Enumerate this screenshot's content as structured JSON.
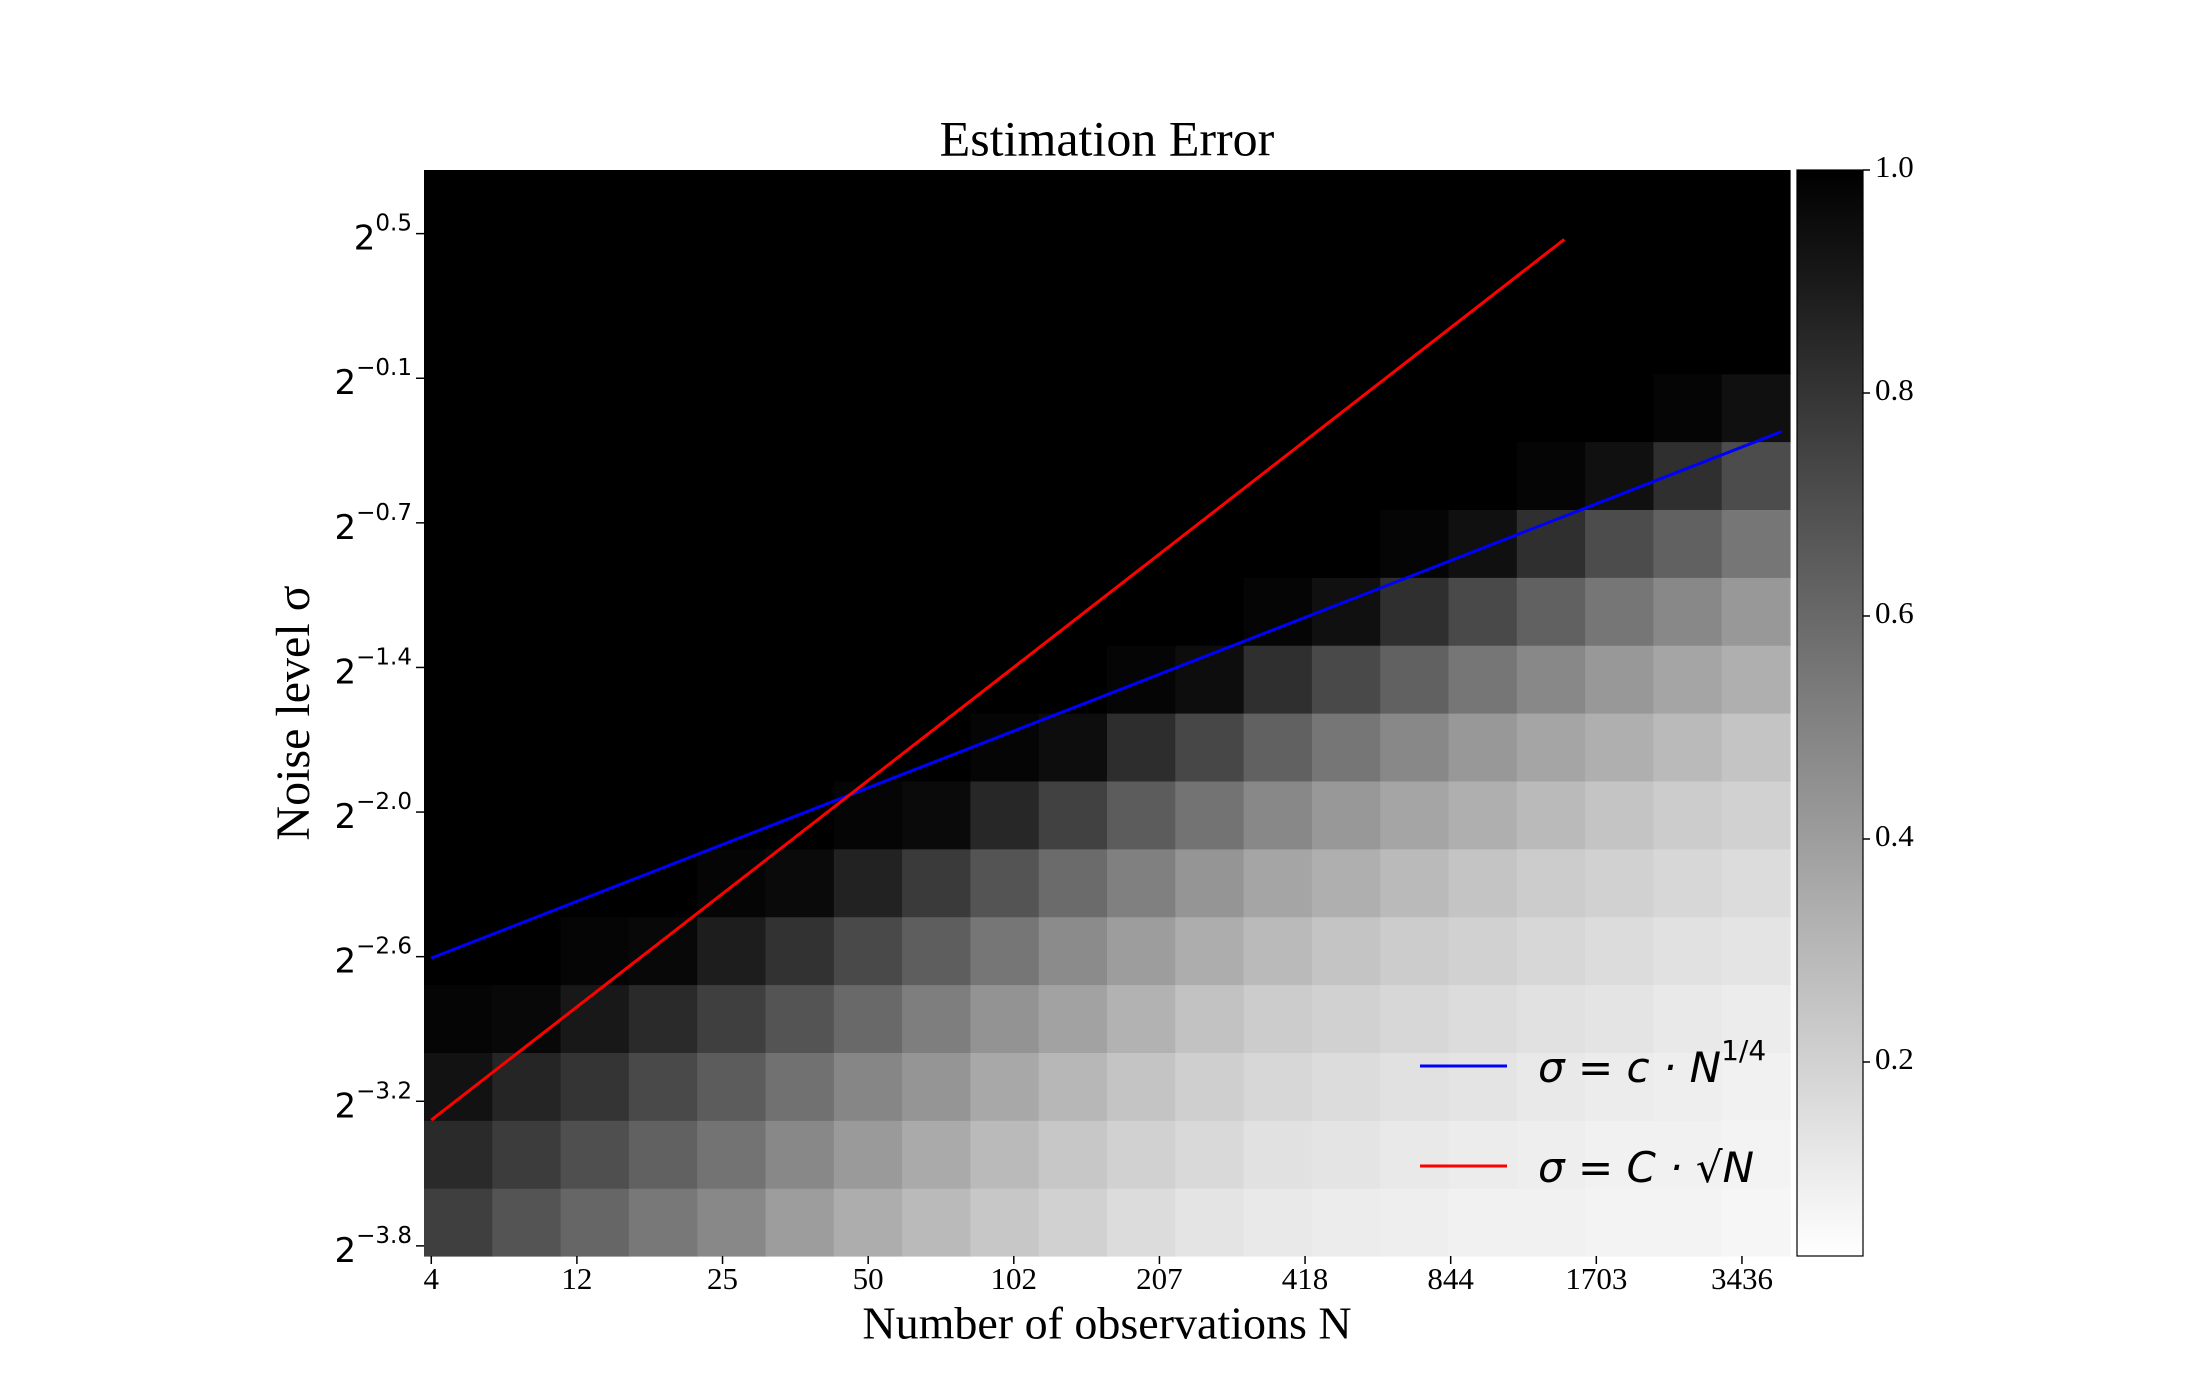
{
  "chart_data": {
    "type": "heatmap",
    "title": "Estimation Error",
    "xlabel": "Number of observations N",
    "ylabel": "Noise level σ",
    "cmap": "gray_r",
    "xlim": [
      -0.05,
      9.33
    ],
    "ylim": [
      -0.07,
      7.44
    ],
    "xticks": [
      {
        "value": 0,
        "label": "4"
      },
      {
        "value": 1,
        "label": "12"
      },
      {
        "value": 2,
        "label": "25"
      },
      {
        "value": 3,
        "label": "50"
      },
      {
        "value": 4,
        "label": "102"
      },
      {
        "value": 5,
        "label": "207"
      },
      {
        "value": 6,
        "label": "418"
      },
      {
        "value": 7,
        "label": "844"
      },
      {
        "value": 8,
        "label": "1703"
      },
      {
        "value": 9,
        "label": "3436"
      }
    ],
    "yticks": [
      {
        "value": 0,
        "label": "2",
        "exponent": "−3.8"
      },
      {
        "value": 1,
        "label": "2",
        "exponent": "−3.2"
      },
      {
        "value": 2,
        "label": "2",
        "exponent": "−2.6"
      },
      {
        "value": 3,
        "label": "2",
        "exponent": "−2.0"
      },
      {
        "value": 4,
        "label": "2",
        "exponent": "−1.4"
      },
      {
        "value": 5,
        "label": "2",
        "exponent": "−0.7"
      },
      {
        "value": 6,
        "label": "2",
        "exponent": "−0.1"
      },
      {
        "value": 7,
        "label": "2",
        "exponent": "0.5"
      }
    ],
    "z": [
      [
        0.76,
        0.68,
        0.61,
        0.54,
        0.48,
        0.4,
        0.34,
        0.29,
        0.24,
        0.2,
        0.16,
        0.13,
        0.11,
        0.1,
        0.09,
        0.08,
        0.08,
        0.07,
        0.07,
        0.06
      ],
      [
        0.84,
        0.77,
        0.7,
        0.63,
        0.56,
        0.48,
        0.41,
        0.35,
        0.29,
        0.24,
        0.2,
        0.17,
        0.14,
        0.13,
        0.11,
        0.1,
        0.09,
        0.08,
        0.08,
        0.07
      ],
      [
        0.93,
        0.86,
        0.8,
        0.72,
        0.65,
        0.57,
        0.49,
        0.43,
        0.36,
        0.3,
        0.25,
        0.21,
        0.18,
        0.16,
        0.14,
        0.13,
        0.11,
        0.1,
        0.09,
        0.08
      ],
      [
        0.98,
        0.97,
        0.91,
        0.84,
        0.76,
        0.68,
        0.6,
        0.52,
        0.44,
        0.38,
        0.32,
        0.26,
        0.22,
        0.2,
        0.18,
        0.16,
        0.14,
        0.13,
        0.11,
        0.1
      ],
      [
        1,
        1,
        0.98,
        0.97,
        0.89,
        0.81,
        0.72,
        0.64,
        0.55,
        0.47,
        0.4,
        0.34,
        0.29,
        0.25,
        0.22,
        0.2,
        0.18,
        0.16,
        0.14,
        0.13
      ],
      [
        1,
        1,
        1,
        1,
        0.98,
        0.96,
        0.87,
        0.78,
        0.68,
        0.59,
        0.51,
        0.43,
        0.37,
        0.33,
        0.29,
        0.25,
        0.22,
        0.2,
        0.18,
        0.16
      ],
      [
        1,
        1,
        1,
        1,
        1,
        1,
        0.98,
        0.96,
        0.85,
        0.75,
        0.65,
        0.56,
        0.48,
        0.42,
        0.37,
        0.33,
        0.29,
        0.25,
        0.22,
        0.2
      ],
      [
        1,
        1,
        1,
        1,
        1,
        1,
        1,
        1,
        0.98,
        0.95,
        0.83,
        0.73,
        0.63,
        0.55,
        0.48,
        0.42,
        0.37,
        0.33,
        0.29,
        0.25
      ],
      [
        1,
        1,
        1,
        1,
        1,
        1,
        1,
        1,
        1,
        1,
        0.98,
        0.95,
        0.82,
        0.72,
        0.63,
        0.55,
        0.48,
        0.42,
        0.37,
        0.33
      ],
      [
        1,
        1,
        1,
        1,
        1,
        1,
        1,
        1,
        1,
        1,
        1,
        1,
        0.98,
        0.94,
        0.82,
        0.72,
        0.63,
        0.55,
        0.48,
        0.42
      ],
      [
        1,
        1,
        1,
        1,
        1,
        1,
        1,
        1,
        1,
        1,
        1,
        1,
        1,
        1,
        0.98,
        0.94,
        0.82,
        0.71,
        0.63,
        0.55
      ],
      [
        1,
        1,
        1,
        1,
        1,
        1,
        1,
        1,
        1,
        1,
        1,
        1,
        1,
        1,
        1,
        1,
        0.98,
        0.94,
        0.82,
        0.71
      ],
      [
        1,
        1,
        1,
        1,
        1,
        1,
        1,
        1,
        1,
        1,
        1,
        1,
        1,
        1,
        1,
        1,
        1,
        1,
        0.98,
        0.94
      ],
      [
        1,
        1,
        1,
        1,
        1,
        1,
        1,
        1,
        1,
        1,
        1,
        1,
        1,
        1,
        1,
        1,
        1,
        1,
        1,
        1
      ],
      [
        1,
        1,
        1,
        1,
        1,
        1,
        1,
        1,
        1,
        1,
        1,
        1,
        1,
        1,
        1,
        1,
        1,
        1,
        1,
        1
      ],
      [
        1,
        1,
        1,
        1,
        1,
        1,
        1,
        1,
        1,
        1,
        1,
        1,
        1,
        1,
        1,
        1,
        1,
        1,
        1,
        1
      ]
    ],
    "series": [
      {
        "name": "σ = c · N",
        "exponent": "1/4",
        "color": "#0000ff",
        "x": [
          0,
          9.27
        ],
        "y": [
          1.99,
          5.63
        ]
      },
      {
        "name": "σ = C · √N",
        "color": "#ff0000",
        "x": [
          0,
          7.78
        ],
        "y": [
          0.87,
          6.96
        ]
      }
    ],
    "legend": "lower right",
    "colorbar": {
      "lim": [
        0.026,
        1.0
      ],
      "ticks": [
        0.2,
        0.4,
        0.6,
        0.8,
        {
          "value": 1,
          "label": "1.0"
        }
      ]
    }
  }
}
